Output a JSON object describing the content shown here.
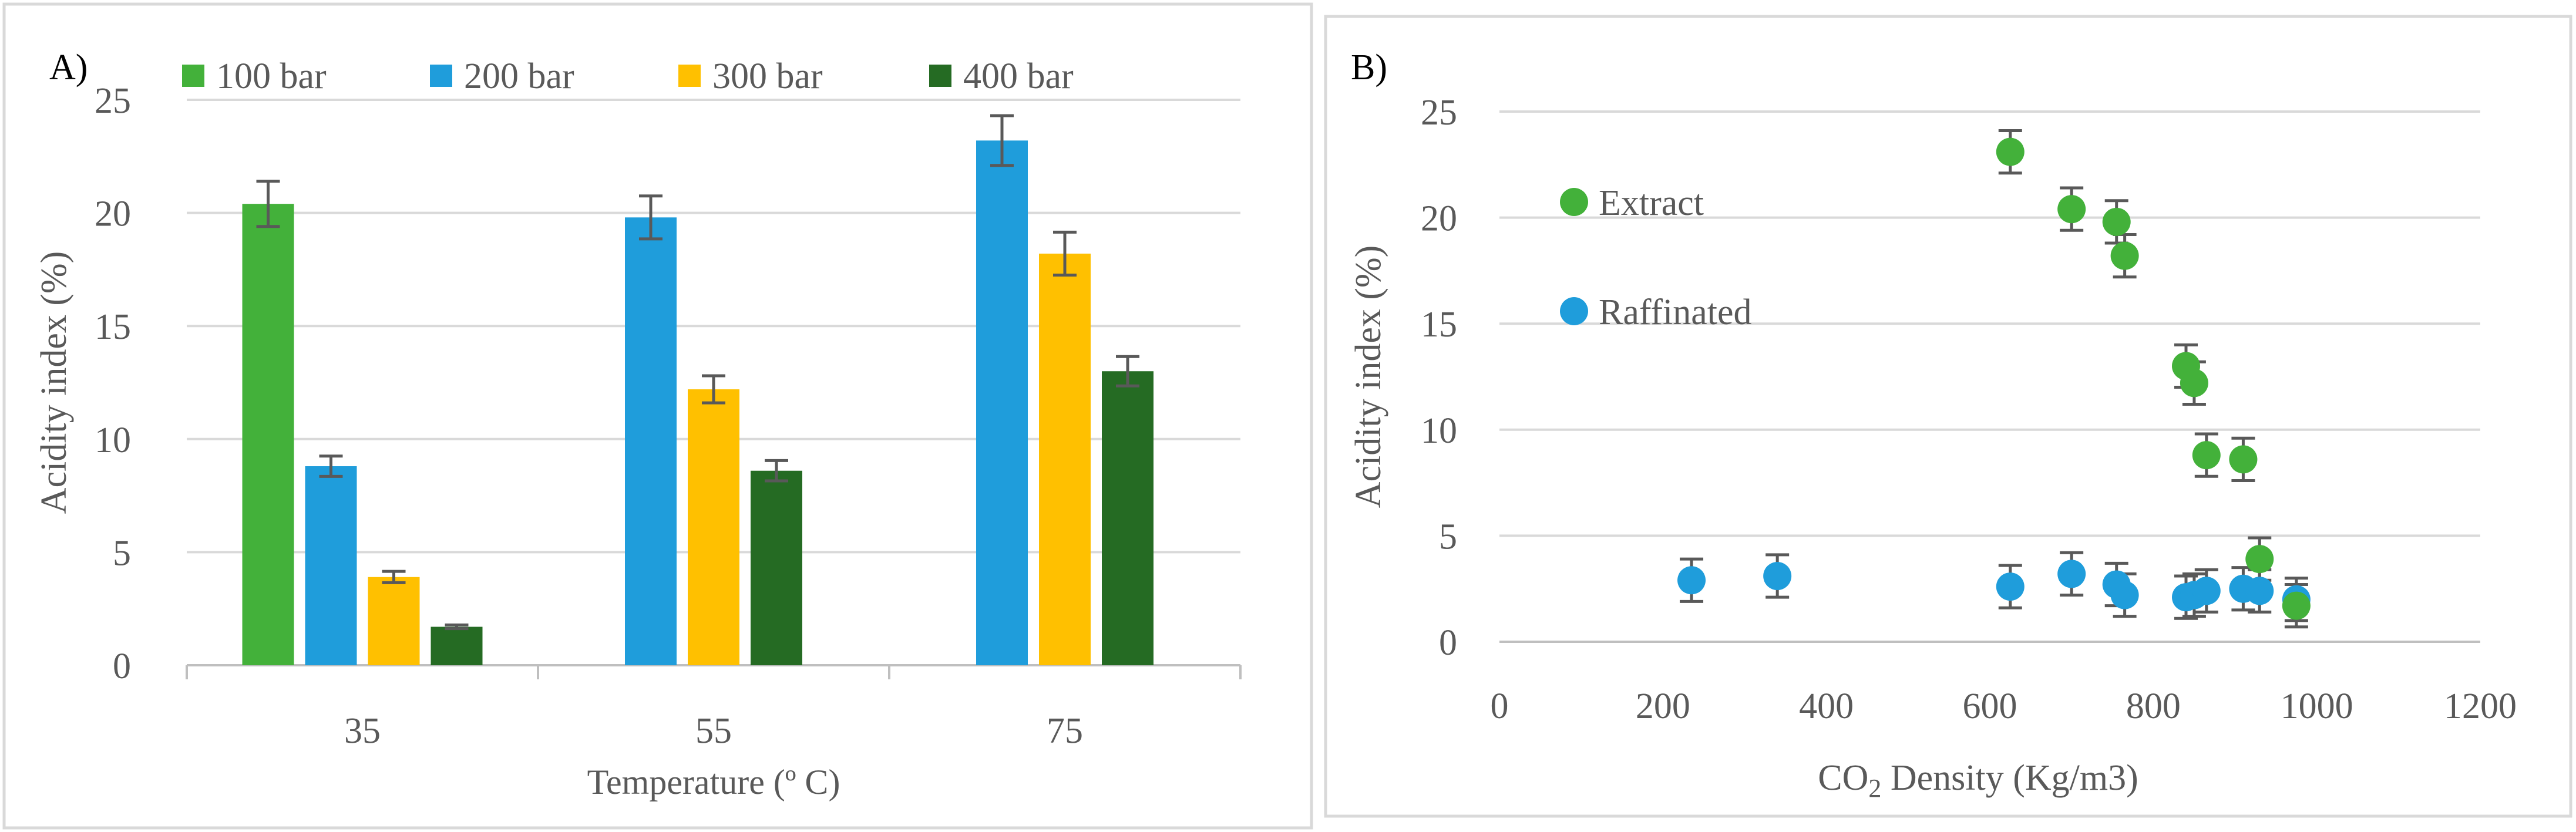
{
  "chart_data": [
    {
      "type": "bar",
      "panel_label": "A)",
      "title": "",
      "xlabel": "Temperature (º C)",
      "ylabel": "Acidity index (%)",
      "ylim": [
        0,
        25
      ],
      "yticks": [
        "0",
        "5",
        "10",
        "15",
        "20",
        "25"
      ],
      "grid": true,
      "legend_position": "top",
      "error_bars": true,
      "categories": [
        "35",
        "55",
        "75"
      ],
      "series": [
        {
          "name": "100 bar",
          "color": "#43b13a",
          "values": [
            20.4,
            null,
            null
          ],
          "errors": [
            1.0,
            null,
            null
          ]
        },
        {
          "name": "200 bar",
          "color": "#1f9ddb",
          "values": [
            8.8,
            19.8,
            23.2
          ],
          "errors": [
            0.45,
            0.95,
            1.1
          ]
        },
        {
          "name": "300 bar",
          "color": "#ffc000",
          "values": [
            3.9,
            12.2,
            18.2
          ],
          "errors": [
            0.25,
            0.6,
            0.95
          ]
        },
        {
          "name": "400 bar",
          "color": "#256b23",
          "values": [
            1.7,
            8.6,
            13.0
          ],
          "errors": [
            0.08,
            0.45,
            0.65
          ]
        }
      ]
    },
    {
      "type": "scatter",
      "panel_label": "B)",
      "title": "",
      "xlabel_main": "CO",
      "xlabel_sub": "2",
      "xlabel_rest": " Density (Kg/m3)",
      "ylabel": "Acidity index (%)",
      "xlim": [
        0,
        1200
      ],
      "ylim": [
        0,
        25
      ],
      "xticks": [
        "0",
        "200",
        "400",
        "600",
        "800",
        "1000",
        "1200"
      ],
      "yticks": [
        "0",
        "5",
        "10",
        "15",
        "20",
        "25"
      ],
      "grid": true,
      "legend_position": "left-inside",
      "error_bars": true,
      "series": [
        {
          "name": "Extract",
          "color": "#43b13a",
          "x": [
            625,
            700,
            755,
            765,
            840,
            850,
            865,
            910,
            930,
            975
          ],
          "y": [
            23.1,
            20.4,
            19.8,
            18.2,
            13.0,
            12.2,
            8.8,
            8.6,
            3.9,
            1.7
          ],
          "errors": [
            1.0,
            1.0,
            1.0,
            1.0,
            1.0,
            1.0,
            1.0,
            1.0,
            1.0,
            1.0
          ]
        },
        {
          "name": "Raffinated",
          "color": "#1f9ddb",
          "x": [
            235,
            340,
            625,
            700,
            755,
            765,
            840,
            850,
            865,
            910,
            930,
            975
          ],
          "y": [
            2.9,
            3.1,
            2.6,
            3.2,
            2.7,
            2.2,
            2.1,
            2.2,
            2.4,
            2.5,
            2.4,
            2.0
          ],
          "errors": [
            1.0,
            1.0,
            1.0,
            1.0,
            1.0,
            1.0,
            1.0,
            1.0,
            1.0,
            1.0,
            1.0,
            1.0
          ]
        }
      ]
    }
  ]
}
